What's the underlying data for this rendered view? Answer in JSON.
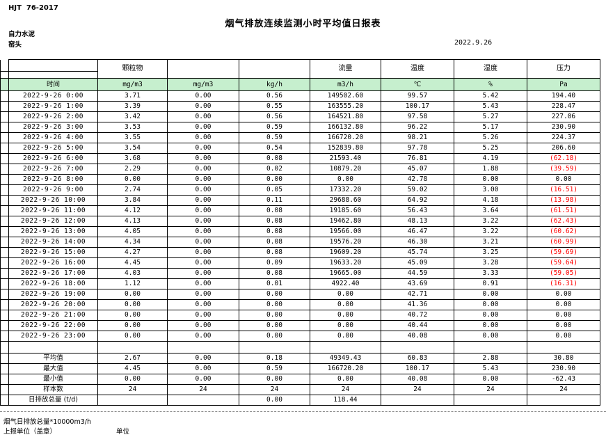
{
  "header": {
    "standard_code": "HJT  76-2017",
    "title": "烟气排放连续监测小时平均值日报表",
    "company": "自力水泥",
    "monitor_point": "窑头",
    "date": "2022.9.26"
  },
  "table": {
    "time_label": "时间",
    "col_groups": {
      "pm": "颗粒物",
      "flow": "流量",
      "temp": "温度",
      "humidity": "湿度",
      "pressure": "压力"
    },
    "units": [
      "mg/m3",
      "mg/m3",
      "kg/h",
      "m3/h",
      "℃",
      "%",
      "Pa"
    ],
    "rows": [
      [
        "2022-9-26 0:00",
        "3.71",
        "0.00",
        "0.56",
        "149502.60",
        "99.57",
        "5.42",
        "194.40"
      ],
      [
        "2022-9-26 1:00",
        "3.39",
        "0.00",
        "0.55",
        "163555.20",
        "100.17",
        "5.43",
        "228.47"
      ],
      [
        "2022-9-26 2:00",
        "3.42",
        "0.00",
        "0.56",
        "164521.80",
        "97.58",
        "5.27",
        "227.06"
      ],
      [
        "2022-9-26 3:00",
        "3.53",
        "0.00",
        "0.59",
        "166132.80",
        "96.22",
        "5.17",
        "230.90"
      ],
      [
        "2022-9-26 4:00",
        "3.55",
        "0.00",
        "0.59",
        "166720.20",
        "98.21",
        "5.26",
        "224.37"
      ],
      [
        "2022-9-26 5:00",
        "3.54",
        "0.00",
        "0.54",
        "152839.80",
        "97.78",
        "5.25",
        "206.60"
      ],
      [
        "2022-9-26 6:00",
        "3.68",
        "0.00",
        "0.08",
        "21593.40",
        "76.81",
        "4.19",
        "(62.18)"
      ],
      [
        "2022-9-26 7:00",
        "2.29",
        "0.00",
        "0.02",
        "10879.20",
        "45.07",
        "1.88",
        "(39.59)"
      ],
      [
        "2022-9-26 8:00",
        "0.00",
        "0.00",
        "0.00",
        "0.00",
        "42.78",
        "0.00",
        "0.00"
      ],
      [
        "2022-9-26 9:00",
        "2.74",
        "0.00",
        "0.05",
        "17332.20",
        "59.02",
        "3.00",
        "(16.51)"
      ],
      [
        "2022-9-26 10:00",
        "3.84",
        "0.00",
        "0.11",
        "29688.60",
        "64.92",
        "4.18",
        "(13.98)"
      ],
      [
        "2022-9-26 11:00",
        "4.12",
        "0.00",
        "0.08",
        "19185.60",
        "56.43",
        "3.64",
        "(61.51)"
      ],
      [
        "2022-9-26 12:00",
        "4.13",
        "0.00",
        "0.08",
        "19462.80",
        "48.13",
        "3.22",
        "(62.43)"
      ],
      [
        "2022-9-26 13:00",
        "4.05",
        "0.00",
        "0.08",
        "19566.00",
        "46.47",
        "3.22",
        "(60.62)"
      ],
      [
        "2022-9-26 14:00",
        "4.34",
        "0.00",
        "0.08",
        "19576.20",
        "46.30",
        "3.21",
        "(60.99)"
      ],
      [
        "2022-9-26 15:00",
        "4.27",
        "0.00",
        "0.08",
        "19609.20",
        "45.74",
        "3.25",
        "(59.69)"
      ],
      [
        "2022-9-26 16:00",
        "4.45",
        "0.00",
        "0.09",
        "19633.20",
        "45.09",
        "3.28",
        "(59.64)"
      ],
      [
        "2022-9-26 17:00",
        "4.03",
        "0.00",
        "0.08",
        "19665.00",
        "44.59",
        "3.33",
        "(59.05)"
      ],
      [
        "2022-9-26 18:00",
        "1.12",
        "0.00",
        "0.01",
        "4922.40",
        "43.69",
        "0.91",
        "(16.31)"
      ],
      [
        "2022-9-26 19:00",
        "0.00",
        "0.00",
        "0.00",
        "0.00",
        "42.71",
        "0.00",
        "0.00"
      ],
      [
        "2022-9-26 20:00",
        "0.00",
        "0.00",
        "0.00",
        "0.00",
        "41.36",
        "0.00",
        "0.00"
      ],
      [
        "2022-9-26 21:00",
        "0.00",
        "0.00",
        "0.00",
        "0.00",
        "40.72",
        "0.00",
        "0.00"
      ],
      [
        "2022-9-26 22:00",
        "0.00",
        "0.00",
        "0.00",
        "0.00",
        "40.44",
        "0.00",
        "0.00"
      ],
      [
        "2022-9-26 23:00",
        "0.00",
        "0.00",
        "0.00",
        "0.00",
        "40.08",
        "0.00",
        "0.00"
      ]
    ],
    "summary": [
      {
        "label": "平均值",
        "values": [
          "2.67",
          "0.00",
          "0.18",
          "49349.43",
          "60.83",
          "2.88",
          "30.80"
        ]
      },
      {
        "label": "最大值",
        "values": [
          "4.45",
          "0.00",
          "0.59",
          "166720.20",
          "100.17",
          "5.43",
          "230.90"
        ]
      },
      {
        "label": "最小值",
        "values": [
          "0.00",
          "0.00",
          "0.00",
          "0.00",
          "40.08",
          "0.00",
          "-62.43"
        ]
      },
      {
        "label": "样本数",
        "values": [
          "24",
          "24",
          "24",
          "24",
          "24",
          "24",
          "24"
        ]
      },
      {
        "label": "日排放总量 (t/d)",
        "values": [
          "",
          "",
          "0.00",
          "118.44",
          "",
          "",
          ""
        ]
      }
    ]
  },
  "footer": {
    "note": "烟气日排放总量*10000m3/h",
    "report_org_label": "上报单位（盖章）",
    "unit_label": "单位"
  },
  "colors": {
    "unit_row_green": "#c6efce",
    "negative_red": "#ff0000"
  }
}
